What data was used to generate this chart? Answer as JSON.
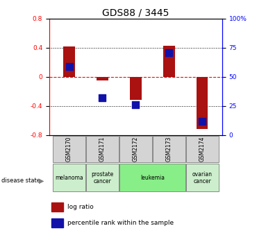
{
  "title": "GDS88 / 3445",
  "samples": [
    "GSM2170",
    "GSM2171",
    "GSM2172",
    "GSM2173",
    "GSM2174"
  ],
  "log_ratio": [
    0.42,
    -0.05,
    -0.32,
    0.43,
    -0.72
  ],
  "percentile_rank_pct": [
    59,
    32,
    26,
    71,
    12
  ],
  "ylim_left": [
    -0.8,
    0.8
  ],
  "ylim_right": [
    0,
    100
  ],
  "yticks_left": [
    -0.8,
    -0.4,
    0,
    0.4,
    0.8
  ],
  "yticks_right": [
    0,
    25,
    50,
    75,
    100
  ],
  "bar_color": "#aa1111",
  "dot_color": "#1111aa",
  "bar_width": 0.35,
  "dot_size": 55,
  "disease_groups": [
    {
      "label": "melanoma",
      "start": 0,
      "end": 0,
      "color": "#cceecc"
    },
    {
      "label": "prostate\ncancer",
      "start": 1,
      "end": 1,
      "color": "#cceecc"
    },
    {
      "label": "leukemia",
      "start": 2,
      "end": 3,
      "color": "#88ee88"
    },
    {
      "label": "ovarian\ncancer",
      "start": 4,
      "end": 4,
      "color": "#cceecc"
    }
  ],
  "legend_items": [
    {
      "label": "log ratio",
      "color": "#aa1111"
    },
    {
      "label": "percentile rank within the sample",
      "color": "#1111aa"
    }
  ],
  "disease_label": "disease state",
  "bg_color": "#ffffff",
  "tick_fontsize": 6.5,
  "title_fontsize": 10
}
